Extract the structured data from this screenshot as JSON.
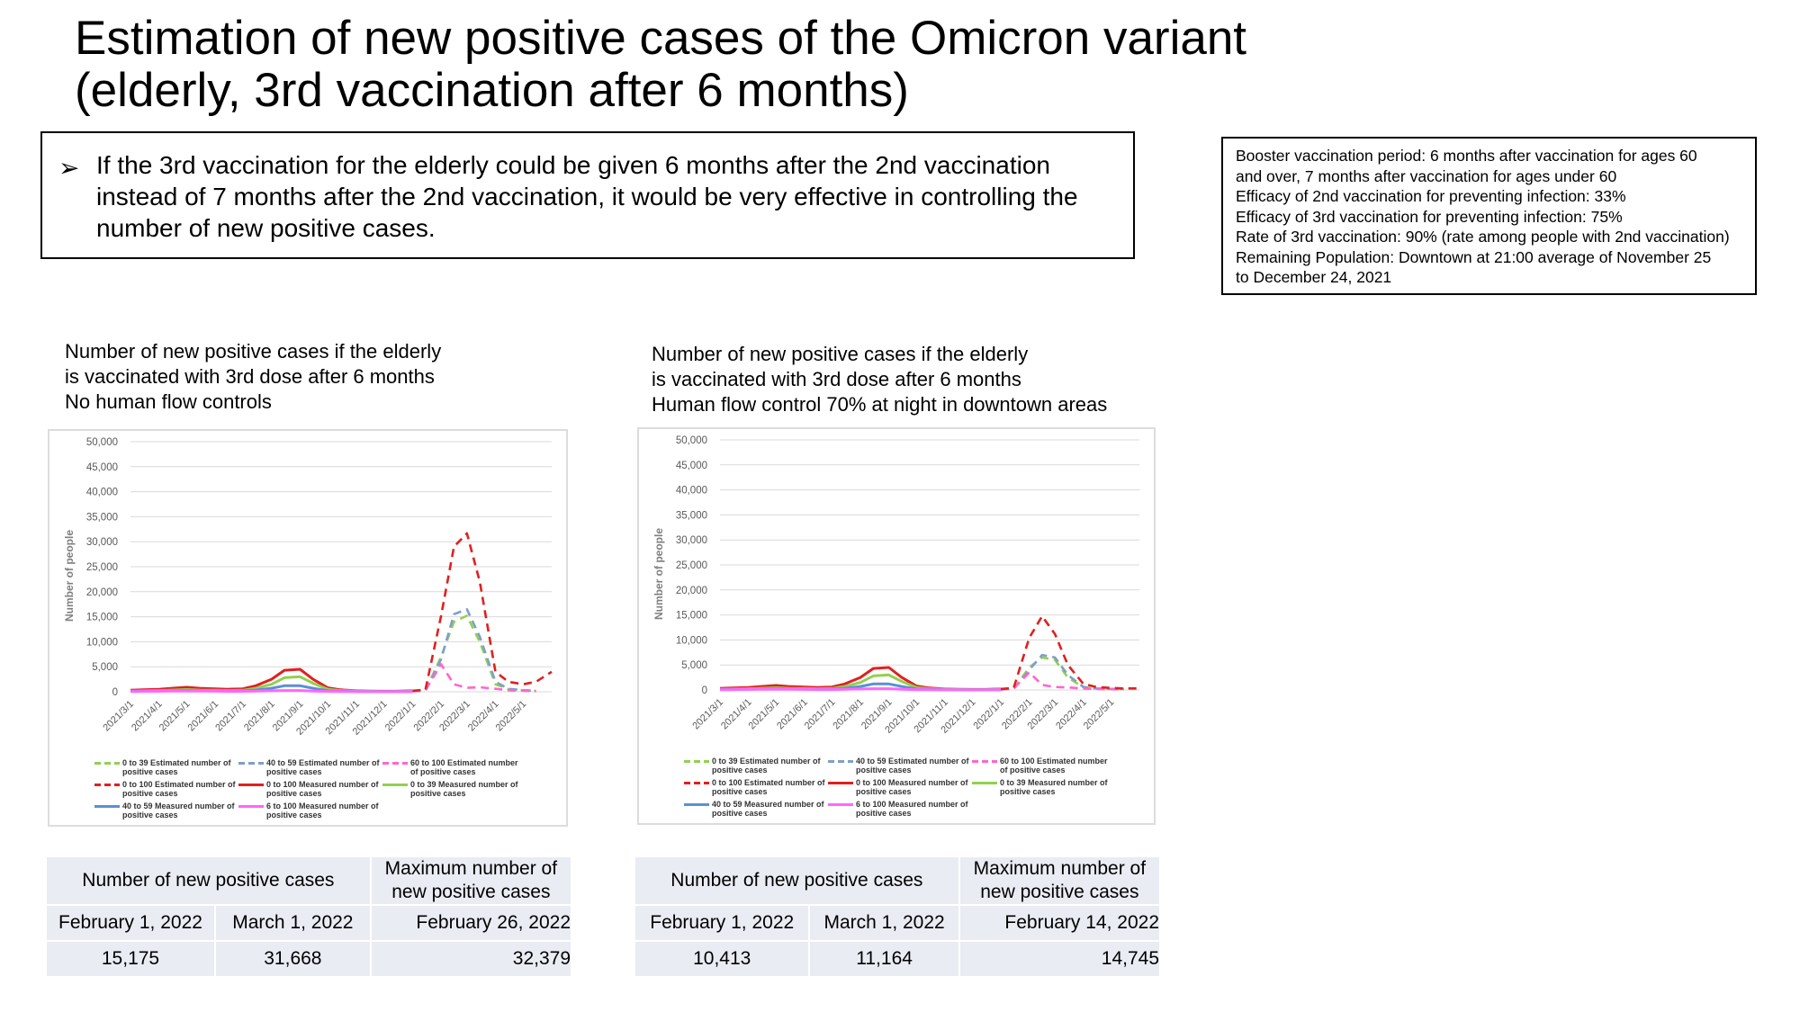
{
  "title": {
    "line1": "Estimation of new positive cases of the Omicron variant",
    "line2": "(elderly, 3rd vaccination after 6 months)"
  },
  "bullet": {
    "icon": "arrow-bullet-icon",
    "text": "If the 3rd vaccination for the elderly could be given 6 months after the 2nd vaccination instead of 7 months after the 2nd vaccination, it would be very effective in controlling the number of new positive cases."
  },
  "assumptions": [
    "Booster vaccination period: 6 months after vaccination for ages 60",
    "and over, 7 months after vaccination for ages under 60",
    "Efficacy of 2nd vaccination for preventing infection: 33%",
    "Efficacy of 3rd vaccination for preventing infection: 75%",
    "Rate of 3rd vaccination: 90% (rate among people with 2nd vaccination)",
    "Remaining Population: Downtown at 21:00 average of November 25",
    "to December 24, 2021"
  ],
  "chart_data": [
    {
      "type": "line",
      "title_lines": [
        "Number of new positive cases if the elderly",
        "is vaccinated with 3rd dose after 6 months",
        "No human flow controls"
      ],
      "ylabel": "Number of people",
      "ylim": [
        0,
        50000
      ],
      "yticks": [
        "50,000",
        "45,000",
        "40,000",
        "35,000",
        "30,000",
        "25,000",
        "20,000",
        "15,000",
        "10,000",
        "5,000",
        "0"
      ],
      "x_ticks": [
        "2021/3/1",
        "2021/4/1",
        "2021/5/1",
        "2021/6/1",
        "2021/7/1",
        "2021/8/1",
        "2021/9/1",
        "2021/10/1",
        "2021/11/1",
        "2021/12/1",
        "2022/1/1",
        "2022/2/1",
        "2022/3/1",
        "2022/4/1",
        "2022/5/1"
      ],
      "x": [
        "2021/3/1",
        "2021/3/15",
        "2021/4/1",
        "2021/4/15",
        "2021/5/1",
        "2021/5/15",
        "2021/6/1",
        "2021/6/15",
        "2021/7/1",
        "2021/7/15",
        "2021/8/1",
        "2021/8/15",
        "2021/9/1",
        "2021/9/15",
        "2021/10/1",
        "2021/10/15",
        "2021/11/1",
        "2021/11/15",
        "2021/12/1",
        "2021/12/15",
        "2022/1/1",
        "2022/1/15",
        "2022/2/1",
        "2022/2/15",
        "2022/3/1",
        "2022/3/15",
        "2022/4/1",
        "2022/4/15",
        "2022/5/1",
        "2022/5/15",
        "2022/6/1"
      ],
      "grid": true,
      "legend_position": "bottom",
      "series": [
        {
          "name": "0 to 39 Estimated number of positive cases",
          "color": "#92d050",
          "dash": true,
          "values": [
            null,
            null,
            null,
            null,
            null,
            null,
            null,
            null,
            null,
            null,
            null,
            null,
            null,
            null,
            null,
            null,
            null,
            null,
            null,
            null,
            100,
            200,
            7000,
            14000,
            15200,
            10000,
            1500,
            500,
            300,
            200,
            null
          ]
        },
        {
          "name": "40 to 59 Estimated number of positive cases",
          "color": "#7f9fc9",
          "dash": true,
          "values": [
            null,
            null,
            null,
            null,
            null,
            null,
            null,
            null,
            null,
            null,
            null,
            null,
            null,
            null,
            null,
            null,
            null,
            null,
            null,
            null,
            100,
            200,
            6500,
            15500,
            16500,
            11000,
            2000,
            600,
            300,
            200,
            null
          ]
        },
        {
          "name": "60 to 100 Estimated number of positive cases",
          "color": "#ff66cc",
          "dash": true,
          "values": [
            null,
            null,
            null,
            null,
            null,
            null,
            null,
            null,
            null,
            null,
            null,
            null,
            null,
            null,
            null,
            null,
            null,
            null,
            null,
            null,
            100,
            300,
            5500,
            1500,
            800,
            900,
            600,
            300,
            200,
            100,
            null
          ]
        },
        {
          "name": "0 to 100 Estimated number of positive cases",
          "color": "#e02020",
          "dash": true,
          "values": [
            null,
            null,
            null,
            null,
            null,
            null,
            null,
            null,
            null,
            null,
            null,
            null,
            null,
            null,
            null,
            null,
            null,
            null,
            null,
            null,
            200,
            400,
            15175,
            29000,
            31668,
            22000,
            4000,
            2000,
            1500,
            2000,
            4000
          ]
        },
        {
          "name": "0 to 100 Measured number of positive cases",
          "color": "#e02020",
          "dash": false,
          "values": [
            300,
            400,
            500,
            700,
            900,
            700,
            600,
            500,
            600,
            1200,
            2500,
            4300,
            4500,
            2500,
            800,
            400,
            200,
            150,
            100,
            100,
            200,
            null,
            null,
            null,
            null,
            null,
            null,
            null,
            null,
            null,
            null
          ]
        },
        {
          "name": "0 to 39 Measured number of positive cases",
          "color": "#92d050",
          "dash": false,
          "values": [
            150,
            200,
            250,
            350,
            450,
            350,
            300,
            250,
            300,
            700,
            1500,
            2800,
            3000,
            1700,
            500,
            250,
            120,
            90,
            60,
            60,
            120,
            null,
            null,
            null,
            null,
            null,
            null,
            null,
            null,
            null,
            null
          ]
        },
        {
          "name": "40 to 59 Measured number of positive cases",
          "color": "#5b8fd6",
          "dash": false,
          "values": [
            90,
            120,
            150,
            200,
            250,
            200,
            180,
            150,
            180,
            350,
            700,
            1200,
            1200,
            700,
            200,
            100,
            50,
            40,
            30,
            30,
            60,
            null,
            null,
            null,
            null,
            null,
            null,
            null,
            null,
            null,
            null
          ]
        },
        {
          "name": "6 to 100 Measured number of positive cases",
          "color": "#ff66ff",
          "dash": false,
          "values": [
            60,
            80,
            100,
            120,
            150,
            120,
            100,
            80,
            80,
            120,
            200,
            250,
            250,
            150,
            70,
            50,
            30,
            20,
            20,
            20,
            30,
            null,
            null,
            null,
            null,
            null,
            null,
            null,
            null,
            null,
            null
          ]
        }
      ]
    },
    {
      "type": "line",
      "title_lines": [
        "Number of new positive cases if the elderly",
        "is vaccinated with 3rd dose after 6 months",
        "Human flow control 70% at night in downtown areas"
      ],
      "ylabel": "Number of people",
      "ylim": [
        0,
        50000
      ],
      "yticks": [
        "50,000",
        "45,000",
        "40,000",
        "35,000",
        "30,000",
        "25,000",
        "20,000",
        "15,000",
        "10,000",
        "5,000",
        "0"
      ],
      "x_ticks": [
        "2021/3/1",
        "2021/4/1",
        "2021/5/1",
        "2021/6/1",
        "2021/7/1",
        "2021/8/1",
        "2021/9/1",
        "2021/10/1",
        "2021/11/1",
        "2021/12/1",
        "2022/1/1",
        "2022/2/1",
        "2022/3/1",
        "2022/4/1",
        "2022/5/1"
      ],
      "x": [
        "2021/3/1",
        "2021/3/15",
        "2021/4/1",
        "2021/4/15",
        "2021/5/1",
        "2021/5/15",
        "2021/6/1",
        "2021/6/15",
        "2021/7/1",
        "2021/7/15",
        "2021/8/1",
        "2021/8/15",
        "2021/9/1",
        "2021/9/15",
        "2021/10/1",
        "2021/10/15",
        "2021/11/1",
        "2021/11/15",
        "2021/12/1",
        "2021/12/15",
        "2022/1/1",
        "2022/1/15",
        "2022/2/1",
        "2022/2/15",
        "2022/3/1",
        "2022/3/15",
        "2022/4/1",
        "2022/4/15",
        "2022/5/1",
        "2022/5/15",
        "2022/6/1"
      ],
      "grid": true,
      "legend_position": "bottom",
      "series": [
        {
          "name": "0 to 39 Estimated number of positive cases",
          "color": "#92d050",
          "dash": true,
          "values": [
            null,
            null,
            null,
            null,
            null,
            null,
            null,
            null,
            null,
            null,
            null,
            null,
            null,
            null,
            null,
            null,
            null,
            null,
            null,
            null,
            100,
            200,
            4500,
            6500,
            6000,
            2500,
            500,
            300,
            200,
            200,
            null
          ]
        },
        {
          "name": "40 to 59 Estimated number of positive cases",
          "color": "#7f9fc9",
          "dash": true,
          "values": [
            null,
            null,
            null,
            null,
            null,
            null,
            null,
            null,
            null,
            null,
            null,
            null,
            null,
            null,
            null,
            null,
            null,
            null,
            null,
            null,
            100,
            200,
            4000,
            7000,
            6500,
            3000,
            600,
            300,
            200,
            200,
            null
          ]
        },
        {
          "name": "60 to 100 Estimated number of positive cases",
          "color": "#ff66cc",
          "dash": true,
          "values": [
            null,
            null,
            null,
            null,
            null,
            null,
            null,
            null,
            null,
            null,
            null,
            null,
            null,
            null,
            null,
            null,
            null,
            null,
            null,
            null,
            100,
            300,
            3500,
            1000,
            600,
            500,
            300,
            200,
            150,
            100,
            null
          ]
        },
        {
          "name": "0 to 100 Estimated number of positive cases",
          "color": "#e02020",
          "dash": true,
          "values": [
            null,
            null,
            null,
            null,
            null,
            null,
            null,
            null,
            null,
            null,
            null,
            null,
            null,
            null,
            null,
            null,
            null,
            null,
            null,
            null,
            200,
            400,
            10413,
            14745,
            11164,
            5000,
            1200,
            600,
            400,
            300,
            300
          ]
        },
        {
          "name": "0 to 100 Measured number of positive cases",
          "color": "#e02020",
          "dash": false,
          "values": [
            300,
            400,
            500,
            700,
            900,
            700,
            600,
            500,
            600,
            1200,
            2500,
            4300,
            4500,
            2500,
            800,
            400,
            200,
            150,
            100,
            100,
            200,
            null,
            null,
            null,
            null,
            null,
            null,
            null,
            null,
            null,
            null
          ]
        },
        {
          "name": "0 to 39 Measured number of positive cases",
          "color": "#92d050",
          "dash": false,
          "values": [
            150,
            200,
            250,
            350,
            450,
            350,
            300,
            250,
            300,
            700,
            1500,
            2800,
            3000,
            1700,
            500,
            250,
            120,
            90,
            60,
            60,
            120,
            null,
            null,
            null,
            null,
            null,
            null,
            null,
            null,
            null,
            null
          ]
        },
        {
          "name": "40 to 59 Measured number of positive cases",
          "color": "#5b8fd6",
          "dash": false,
          "values": [
            90,
            120,
            150,
            200,
            250,
            200,
            180,
            150,
            180,
            350,
            700,
            1200,
            1200,
            700,
            200,
            100,
            50,
            40,
            30,
            30,
            60,
            null,
            null,
            null,
            null,
            null,
            null,
            null,
            null,
            null,
            null
          ]
        },
        {
          "name": "6 to 100 Measured number of positive cases",
          "color": "#ff66ff",
          "dash": false,
          "values": [
            60,
            80,
            100,
            120,
            150,
            120,
            100,
            80,
            80,
            120,
            200,
            250,
            250,
            150,
            70,
            50,
            30,
            20,
            20,
            20,
            30,
            null,
            null,
            null,
            null,
            null,
            null,
            null,
            null,
            null,
            null
          ]
        }
      ]
    }
  ],
  "tables": [
    {
      "header_left": "Number of new positive cases",
      "header_right": "Maximum number of new positive cases",
      "dates": [
        "February 1, 2022",
        "March 1, 2022",
        "February 26, 2022"
      ],
      "values": [
        "15,175",
        "31,668",
        "32,379"
      ]
    },
    {
      "header_left": "Number of new positive cases",
      "header_right": "Maximum number of new positive cases",
      "dates": [
        "February 1, 2022",
        "March 1, 2022",
        "February 14, 2022"
      ],
      "values": [
        "10,413",
        "11,164",
        "14,745"
      ]
    }
  ]
}
